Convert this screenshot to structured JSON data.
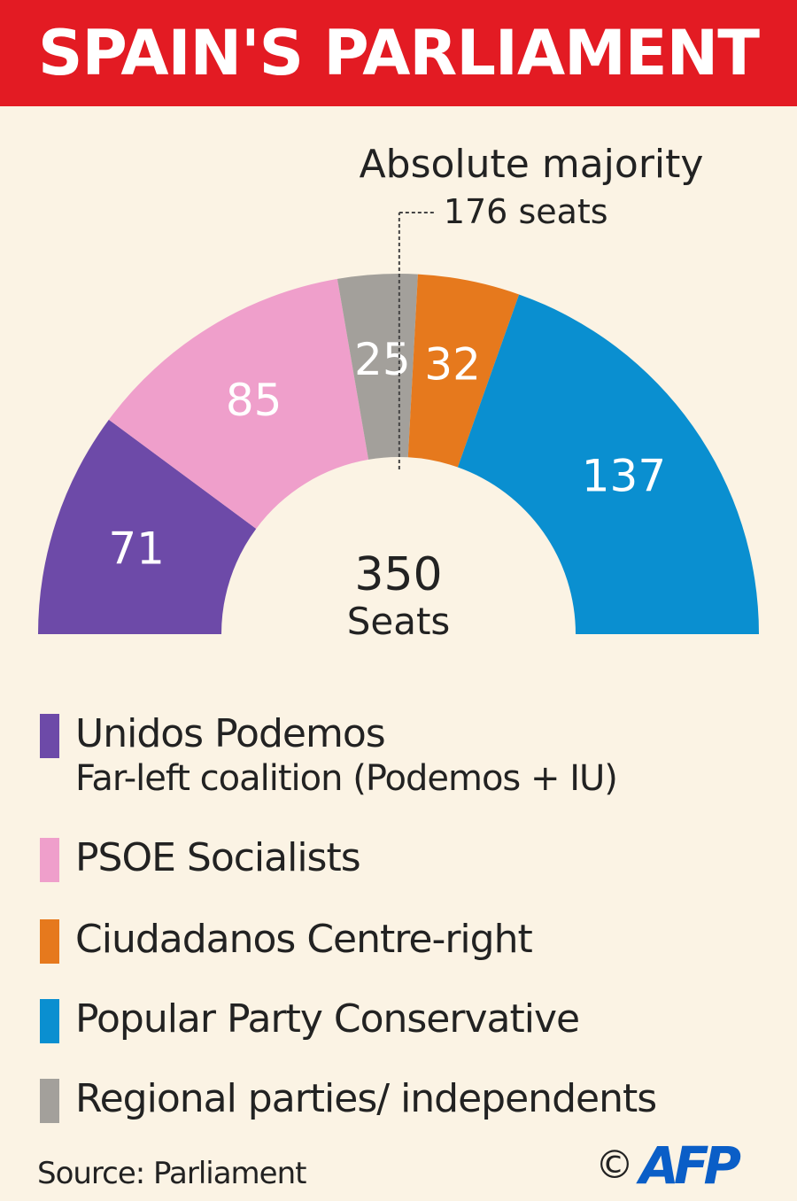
{
  "header": {
    "title": "SPAIN'S PARLIAMENT"
  },
  "chart_data": {
    "type": "pie",
    "subtype": "half-donut parliament chart",
    "total": 350,
    "total_label": "350",
    "total_unit": "Seats",
    "majority_label": "Absolute majority",
    "majority_value_label": "176 seats",
    "majority_seats": 176,
    "slices": [
      {
        "party": "Unidos Podemos",
        "seats": 71,
        "color": "#6d4aa8"
      },
      {
        "party": "PSOE Socialists",
        "seats": 85,
        "color": "#ef9fcb"
      },
      {
        "party": "Regional parties/ independents",
        "seats": 25,
        "color": "#a3a09b"
      },
      {
        "party": "Ciudadanos Centre-right",
        "seats": 32,
        "color": "#e6791d"
      },
      {
        "party": "Popular Party Conservative",
        "seats": 137,
        "color": "#0a8fd0"
      }
    ]
  },
  "legend": [
    {
      "label": "Unidos Podemos",
      "sub": "Far-left coalition (Podemos + IU)",
      "color": "#6d4aa8"
    },
    {
      "label": "PSOE Socialists",
      "sub": "",
      "color": "#ef9fcb"
    },
    {
      "label": "Ciudadanos Centre-right",
      "sub": "",
      "color": "#e6791d"
    },
    {
      "label": "Popular Party Conservative",
      "sub": "",
      "color": "#0a8fd0"
    },
    {
      "label": "Regional parties/ independents",
      "sub": "",
      "color": "#a3a09b"
    }
  ],
  "footer": {
    "source": "Source: Parliament",
    "copyright": "©",
    "logo": "AFP"
  }
}
